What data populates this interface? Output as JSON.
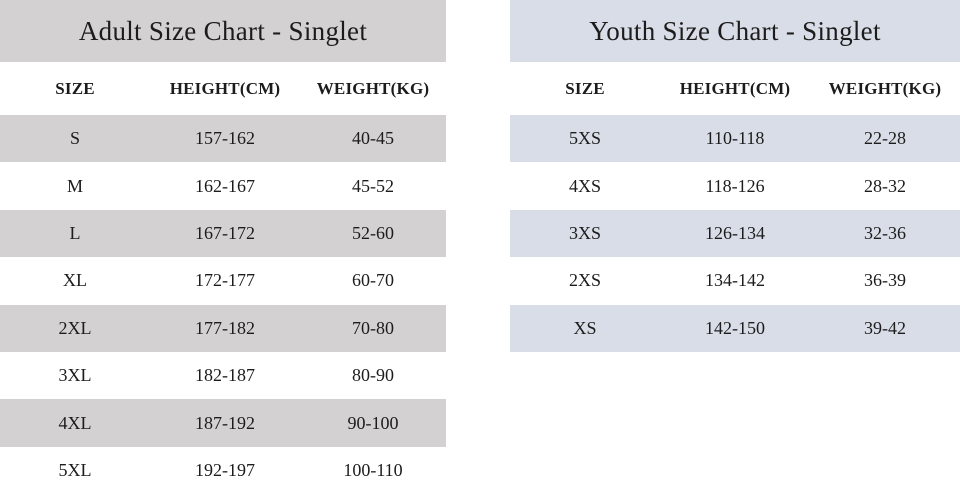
{
  "page": {
    "background_color": "#ffffff",
    "text_color": "#1d1c1c"
  },
  "adult_table": {
    "title": "Adult Size Chart - Singlet",
    "band_color": "#d3d1d1",
    "stripe_color": "#d3d1d1",
    "columns": [
      "SIZE",
      "HEIGHT(CM)",
      "WEIGHT(KG)"
    ],
    "rows": [
      [
        "S",
        "157-162",
        "40-45"
      ],
      [
        "M",
        "162-167",
        "45-52"
      ],
      [
        "L",
        "167-172",
        "52-60"
      ],
      [
        "XL",
        "172-177",
        "60-70"
      ],
      [
        "2XL",
        "177-182",
        "70-80"
      ],
      [
        "3XL",
        "182-187",
        "80-90"
      ],
      [
        "4XL",
        "187-192",
        "90-100"
      ],
      [
        "5XL",
        "192-197",
        "100-110"
      ]
    ]
  },
  "youth_table": {
    "title": "Youth Size Chart - Singlet",
    "band_color": "#d8dde7",
    "stripe_color": "#d8dde7",
    "columns": [
      "SIZE",
      "HEIGHT(CM)",
      "WEIGHT(KG)"
    ],
    "rows": [
      [
        "5XS",
        "110-118",
        "22-28"
      ],
      [
        "4XS",
        "118-126",
        "28-32"
      ],
      [
        "3XS",
        "126-134",
        "32-36"
      ],
      [
        "2XS",
        "134-142",
        "36-39"
      ],
      [
        "XS",
        "142-150",
        "39-42"
      ]
    ]
  }
}
